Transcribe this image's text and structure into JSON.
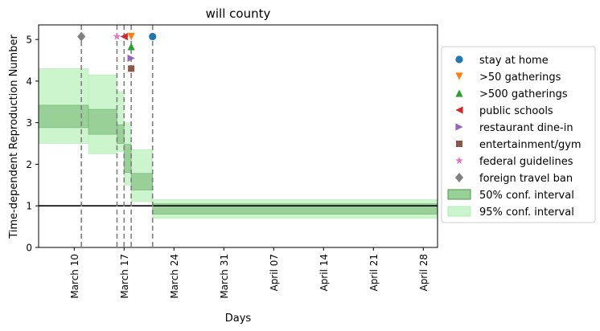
{
  "chart_data": {
    "type": "line",
    "title": "will county",
    "xlabel": "Days",
    "ylabel": "Time-dependent Reproduction Number",
    "xlim": [
      "2020-03-05",
      "2020-04-30"
    ],
    "ylim": [
      0,
      5.35
    ],
    "x_ticks": [
      {
        "date": "2020-03-10",
        "label": "March 10"
      },
      {
        "date": "2020-03-17",
        "label": "March 17"
      },
      {
        "date": "2020-03-24",
        "label": "March 24"
      },
      {
        "date": "2020-03-31",
        "label": "March 31"
      },
      {
        "date": "2020-04-07",
        "label": "April 07"
      },
      {
        "date": "2020-04-14",
        "label": "April 14"
      },
      {
        "date": "2020-04-21",
        "label": "April 21"
      },
      {
        "date": "2020-04-28",
        "label": "April 28"
      }
    ],
    "y_ticks": [
      0,
      1,
      2,
      3,
      4,
      5
    ],
    "grid": false,
    "legend_position": "right, outside plot",
    "reference_line": {
      "y": 1,
      "color": "#000000"
    },
    "intervals": [
      {
        "start": "2020-03-05",
        "end": "2020-03-12",
        "ci50": [
          2.88,
          3.42
        ],
        "ci95": [
          2.5,
          4.3
        ]
      },
      {
        "start": "2020-03-12",
        "end": "2020-03-16",
        "ci50": [
          2.72,
          3.32
        ],
        "ci95": [
          2.25,
          4.15
        ]
      },
      {
        "start": "2020-03-16",
        "end": "2020-03-17",
        "ci50": [
          2.5,
          2.95
        ],
        "ci95": [
          2.3,
          3.75
        ]
      },
      {
        "start": "2020-03-17",
        "end": "2020-03-18",
        "ci50": [
          1.8,
          2.48
        ],
        "ci95": [
          1.5,
          3.0
        ]
      },
      {
        "start": "2020-03-18",
        "end": "2020-03-21",
        "ci50": [
          1.38,
          1.78
        ],
        "ci95": [
          1.1,
          2.35
        ]
      },
      {
        "start": "2020-03-21",
        "end": "2020-04-30",
        "ci50": [
          0.8,
          1.05
        ],
        "ci95": [
          0.7,
          1.15
        ]
      }
    ],
    "events": [
      {
        "name": "stay at home",
        "date": "2020-03-21",
        "y": 5.07,
        "marker": "circle",
        "color": "#1f77b4"
      },
      {
        "name": ">50 gatherings",
        "date": "2020-03-18",
        "y": 5.07,
        "marker": "triangle-down",
        "color": "#ff7f0e"
      },
      {
        "name": ">500 gatherings",
        "date": "2020-03-18",
        "y": 4.83,
        "marker": "triangle-up",
        "color": "#2ca02c"
      },
      {
        "name": "public schools",
        "date": "2020-03-17",
        "y": 5.07,
        "marker": "triangle-left",
        "color": "#d62728"
      },
      {
        "name": "restaurant dine-in",
        "date": "2020-03-18",
        "y": 4.55,
        "marker": "triangle-right",
        "color": "#9467bd"
      },
      {
        "name": "entertainment/gym",
        "date": "2020-03-18",
        "y": 4.3,
        "marker": "square",
        "color": "#8c564b"
      },
      {
        "name": "federal guidelines",
        "date": "2020-03-16",
        "y": 5.07,
        "marker": "star",
        "color": "#e377c2"
      },
      {
        "name": "foreign travel ban",
        "date": "2020-03-11",
        "y": 5.07,
        "marker": "diamond",
        "color": "#7f7f7f"
      }
    ],
    "event_lines": [
      "2020-03-11",
      "2020-03-16",
      "2020-03-17",
      "2020-03-18",
      "2020-03-21"
    ],
    "legend": [
      {
        "label": "stay at home",
        "kind": "marker",
        "ref": 0
      },
      {
        "label": ">50 gatherings",
        "kind": "marker",
        "ref": 1
      },
      {
        "label": ">500 gatherings",
        "kind": "marker",
        "ref": 2
      },
      {
        "label": "public schools",
        "kind": "marker",
        "ref": 3
      },
      {
        "label": "restaurant dine-in",
        "kind": "marker",
        "ref": 4
      },
      {
        "label": "entertainment/gym",
        "kind": "marker",
        "ref": 5
      },
      {
        "label": "federal guidelines",
        "kind": "marker",
        "ref": 6
      },
      {
        "label": "foreign travel ban",
        "kind": "marker",
        "ref": 7
      },
      {
        "label": "50% conf. interval",
        "kind": "patch",
        "fill": "#98d098",
        "stroke": "#4a9a4a"
      },
      {
        "label": "95% conf. interval",
        "kind": "patch",
        "fill": "#cdf5cd",
        "stroke": "#b6ecb6"
      }
    ],
    "colors": {
      "ci50": "#98d098",
      "ci95": "#cdf5cd",
      "event_line": "#7f7f7f",
      "axis": "#000000"
    }
  }
}
